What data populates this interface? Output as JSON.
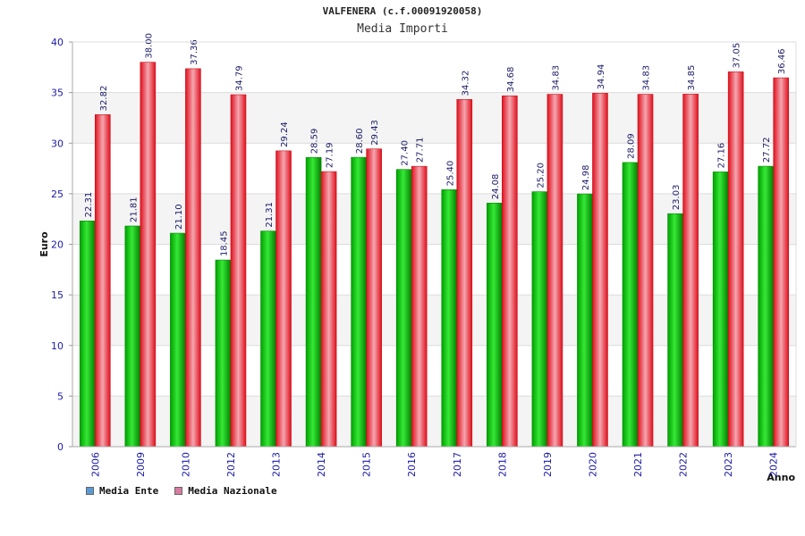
{
  "chart_data": {
    "type": "bar",
    "title": "VALFENERA (c.f.00091920058)",
    "subtitle": "Media Importi",
    "xlabel": "Anno",
    "ylabel": "Euro",
    "ylim": [
      0,
      40
    ],
    "yticks": [
      0,
      5,
      10,
      15,
      20,
      25,
      30,
      35,
      40
    ],
    "grid": true,
    "legend_position": "bottom-left",
    "categories": [
      "2006",
      "2009",
      "2010",
      "2012",
      "2013",
      "2014",
      "2015",
      "2016",
      "2017",
      "2018",
      "2019",
      "2020",
      "2021",
      "2022",
      "2023",
      "2024"
    ],
    "series": [
      {
        "name": "Media Ente",
        "bar_color": "#00b000",
        "legend_color": "#5b9bd5",
        "values": [
          22.31,
          21.81,
          21.1,
          18.45,
          21.31,
          28.59,
          28.6,
          27.4,
          25.4,
          24.08,
          25.2,
          24.98,
          28.09,
          23.03,
          27.16,
          27.72
        ],
        "labels": [
          "22.31",
          "21.81",
          "21.10",
          "18.45",
          "21.31",
          "28.59",
          "28.60",
          "27.40",
          "25.40",
          "24.08",
          "25.20",
          "24.98",
          "28.09",
          "23.03",
          "27.16",
          "27.72"
        ]
      },
      {
        "name": "Media Nazionale",
        "bar_color": "#e8202a",
        "legend_color": "#d87ca0",
        "values": [
          32.82,
          38.0,
          37.36,
          34.79,
          29.24,
          27.19,
          29.43,
          27.71,
          34.32,
          34.68,
          34.83,
          34.94,
          34.83,
          34.85,
          37.05,
          36.46
        ],
        "labels": [
          "32.82",
          "38.00",
          "37.36",
          "34.79",
          "29.24",
          "27.19",
          "29.43",
          "27.71",
          "34.32",
          "34.68",
          "34.83",
          "34.94",
          "34.83",
          "34.85",
          "37.05",
          "36.46"
        ]
      }
    ]
  }
}
